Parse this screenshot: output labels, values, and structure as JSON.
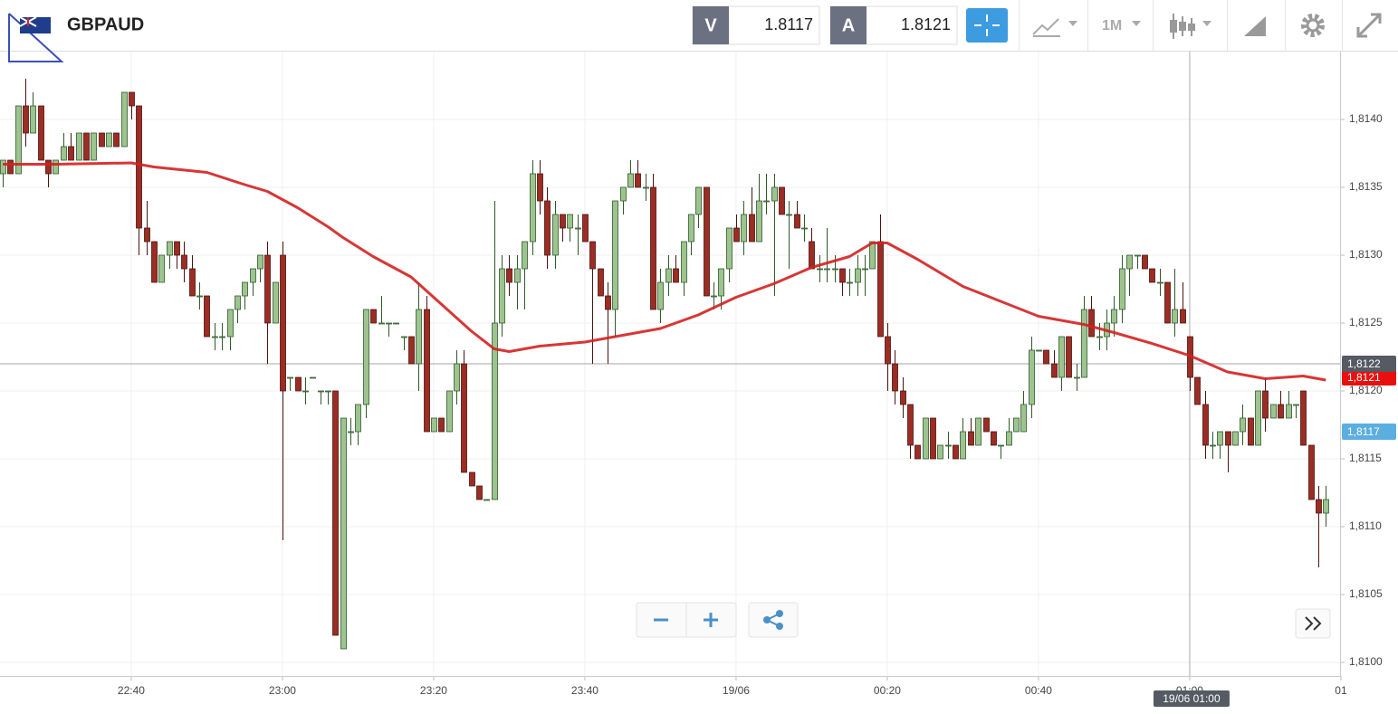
{
  "toolbar": {
    "symbol": "GBPAUD",
    "bid": {
      "label": "V",
      "value": 1.8117
    },
    "ask": {
      "label": "A",
      "value": 1.8121
    },
    "timeframe": "1M"
  },
  "chart_data": {
    "type": "candlestick",
    "x": [
      "22:23",
      "22:24",
      "22:25",
      "22:26",
      "22:27",
      "22:28",
      "22:29",
      "22:30",
      "22:31",
      "22:32",
      "22:33",
      "22:34",
      "22:35",
      "22:36",
      "22:37",
      "22:38",
      "22:39",
      "22:40",
      "22:41",
      "22:42",
      "22:43",
      "22:44",
      "22:45",
      "22:46",
      "22:47",
      "22:48",
      "22:49",
      "22:50",
      "22:51",
      "22:52",
      "22:53",
      "22:54",
      "22:55",
      "22:56",
      "22:57",
      "22:58",
      "22:59",
      "23:00",
      "23:01",
      "23:02",
      "23:03",
      "23:04",
      "23:05",
      "23:06",
      "23:07",
      "23:08",
      "23:09",
      "23:10",
      "23:11",
      "23:12",
      "23:13",
      "23:14",
      "23:15",
      "23:16",
      "23:17",
      "23:18",
      "23:19",
      "23:20",
      "23:21",
      "23:22",
      "23:23",
      "23:24",
      "23:25",
      "23:26",
      "23:27",
      "23:28",
      "23:29",
      "23:30",
      "23:31",
      "23:32",
      "23:33",
      "23:34",
      "23:35",
      "23:36",
      "23:37",
      "23:38",
      "23:39",
      "23:40",
      "23:41",
      "23:42",
      "23:43",
      "23:44",
      "23:45",
      "23:46",
      "23:47",
      "23:48",
      "23:49",
      "23:50",
      "23:51",
      "23:52",
      "23:53",
      "23:54",
      "23:55",
      "23:56",
      "23:57",
      "23:58",
      "23:59",
      "00:00",
      "00:01",
      "00:02",
      "00:03",
      "00:04",
      "00:05",
      "00:06",
      "00:07",
      "00:08",
      "00:09",
      "00:10",
      "00:11",
      "00:12",
      "00:13",
      "00:14",
      "00:15",
      "00:16",
      "00:17",
      "00:18",
      "00:19",
      "00:20",
      "00:21",
      "00:22",
      "00:23",
      "00:24",
      "00:25",
      "00:26",
      "00:27",
      "00:28",
      "00:29",
      "00:30",
      "00:31",
      "00:32",
      "00:33",
      "00:34",
      "00:35",
      "00:36",
      "00:37",
      "00:38",
      "00:39",
      "00:40",
      "00:41",
      "00:42",
      "00:43",
      "00:44",
      "00:45",
      "00:46",
      "00:47",
      "00:48",
      "00:49",
      "00:50",
      "00:51",
      "00:52",
      "00:53",
      "00:54",
      "00:55",
      "00:56",
      "00:57",
      "00:58",
      "00:59",
      "01:00",
      "01:01",
      "01:02",
      "01:03",
      "01:04",
      "01:05",
      "01:06",
      "01:07",
      "01:08",
      "01:09",
      "01:10",
      "01:11",
      "01:12",
      "01:13",
      "01:14",
      "01:15",
      "01:16",
      "01:17",
      "01:18"
    ],
    "ohlc": [
      [
        1.8136,
        1.8137,
        1.8135,
        1.8137
      ],
      [
        1.8137,
        1.8137,
        1.8136,
        1.8136
      ],
      [
        1.8136,
        1.8141,
        1.8136,
        1.8141
      ],
      [
        1.8141,
        1.8143,
        1.8138,
        1.8139
      ],
      [
        1.8139,
        1.8142,
        1.8139,
        1.8141
      ],
      [
        1.8141,
        1.8141,
        1.8137,
        1.8137
      ],
      [
        1.8137,
        1.8137,
        1.8135,
        1.8136
      ],
      [
        1.8136,
        1.8137,
        1.8136,
        1.8137
      ],
      [
        1.8137,
        1.8139,
        1.8137,
        1.8138
      ],
      [
        1.8138,
        1.8139,
        1.8137,
        1.8137
      ],
      [
        1.8137,
        1.8139,
        1.8137,
        1.8139
      ],
      [
        1.8139,
        1.8139,
        1.8137,
        1.8137
      ],
      [
        1.8137,
        1.8139,
        1.8137,
        1.8139
      ],
      [
        1.8139,
        1.8139,
        1.8138,
        1.8138
      ],
      [
        1.8138,
        1.8139,
        1.8138,
        1.8139
      ],
      [
        1.8139,
        1.8139,
        1.8138,
        1.8138
      ],
      [
        1.8138,
        1.8142,
        1.8138,
        1.8142
      ],
      [
        1.8142,
        1.8142,
        1.814,
        1.8141
      ],
      [
        1.8141,
        1.8141,
        1.813,
        1.8132
      ],
      [
        1.8132,
        1.8134,
        1.813,
        1.8131
      ],
      [
        1.8131,
        1.8131,
        1.8128,
        1.8128
      ],
      [
        1.8128,
        1.813,
        1.8128,
        1.813
      ],
      [
        1.813,
        1.8131,
        1.8129,
        1.8131
      ],
      [
        1.8131,
        1.8131,
        1.8129,
        1.813
      ],
      [
        1.813,
        1.8131,
        1.8128,
        1.8129
      ],
      [
        1.8129,
        1.813,
        1.8127,
        1.8127
      ],
      [
        1.8127,
        1.8128,
        1.8126,
        1.8127
      ],
      [
        1.8127,
        1.8127,
        1.8124,
        1.8124
      ],
      [
        1.8124,
        1.8125,
        1.8123,
        1.8124
      ],
      [
        1.8124,
        1.8125,
        1.8123,
        1.8124
      ],
      [
        1.8124,
        1.8126,
        1.8123,
        1.8126
      ],
      [
        1.8126,
        1.8127,
        1.8125,
        1.8127
      ],
      [
        1.8127,
        1.8128,
        1.8126,
        1.8128
      ],
      [
        1.8128,
        1.8129,
        1.8127,
        1.8129
      ],
      [
        1.8129,
        1.813,
        1.8128,
        1.813
      ],
      [
        1.813,
        1.8131,
        1.8122,
        1.8125
      ],
      [
        1.8125,
        1.8128,
        1.8125,
        1.8128
      ],
      [
        1.813,
        1.8131,
        1.8109,
        1.812
      ],
      [
        1.8121,
        1.8121,
        1.812,
        1.8121
      ],
      [
        1.8121,
        1.8121,
        1.812,
        1.812
      ],
      [
        1.812,
        1.8121,
        1.8119,
        1.812
      ],
      [
        1.8121,
        1.8121,
        1.8121,
        1.8121
      ],
      [
        1.812,
        1.812,
        1.8119,
        1.812
      ],
      [
        1.812,
        1.812,
        1.8119,
        1.812
      ],
      [
        1.812,
        1.812,
        1.8102,
        1.8102
      ],
      [
        1.8101,
        1.8118,
        1.8101,
        1.8118
      ],
      [
        1.8117,
        1.8118,
        1.8116,
        1.8117
      ],
      [
        1.8117,
        1.8119,
        1.8116,
        1.8119
      ],
      [
        1.8119,
        1.8126,
        1.8118,
        1.8126
      ],
      [
        1.8126,
        1.8126,
        1.8125,
        1.8125
      ],
      [
        1.8125,
        1.8127,
        1.8125,
        1.8125
      ],
      [
        1.8125,
        1.8125,
        1.8124,
        1.8125
      ],
      [
        1.8125,
        1.8125,
        1.8125,
        1.8125
      ],
      [
        1.8124,
        1.8124,
        1.8123,
        1.8124
      ],
      [
        1.8124,
        1.8124,
        1.8122,
        1.8122
      ],
      [
        1.8122,
        1.8128,
        1.812,
        1.8126
      ],
      [
        1.8126,
        1.8127,
        1.8117,
        1.8117
      ],
      [
        1.8117,
        1.8118,
        1.8117,
        1.8118
      ],
      [
        1.8118,
        1.8118,
        1.8117,
        1.8117
      ],
      [
        1.8117,
        1.812,
        1.8117,
        1.812
      ],
      [
        1.812,
        1.8123,
        1.8119,
        1.8122
      ],
      [
        1.8122,
        1.8123,
        1.8114,
        1.8114
      ],
      [
        1.8114,
        1.8114,
        1.8113,
        1.8113
      ],
      [
        1.8113,
        1.8113,
        1.8112,
        1.8112
      ],
      [
        1.8112,
        1.8112,
        1.8112,
        1.8112
      ],
      [
        1.8112,
        1.8134,
        1.8112,
        1.8125
      ],
      [
        1.8125,
        1.813,
        1.8124,
        1.8129
      ],
      [
        1.8129,
        1.813,
        1.8127,
        1.8128
      ],
      [
        1.8128,
        1.813,
        1.8126,
        1.8129
      ],
      [
        1.8129,
        1.8131,
        1.8126,
        1.8131
      ],
      [
        1.8131,
        1.8137,
        1.813,
        1.8136
      ],
      [
        1.8136,
        1.8137,
        1.8133,
        1.8134
      ],
      [
        1.8134,
        1.8135,
        1.8129,
        1.813
      ],
      [
        1.813,
        1.8134,
        1.8129,
        1.8133
      ],
      [
        1.8133,
        1.8133,
        1.8131,
        1.8132
      ],
      [
        1.8132,
        1.8133,
        1.8131,
        1.8133
      ],
      [
        1.8132,
        1.8133,
        1.813,
        1.8132
      ],
      [
        1.8133,
        1.8133,
        1.8131,
        1.8131
      ],
      [
        1.8131,
        1.8131,
        1.8122,
        1.8129
      ],
      [
        1.8129,
        1.8129,
        1.8127,
        1.8127
      ],
      [
        1.8127,
        1.8128,
        1.8122,
        1.8126
      ],
      [
        1.8126,
        1.8134,
        1.8124,
        1.8134
      ],
      [
        1.8134,
        1.8135,
        1.8133,
        1.8135
      ],
      [
        1.8135,
        1.8137,
        1.8135,
        1.8136
      ],
      [
        1.8136,
        1.8137,
        1.8135,
        1.8135
      ],
      [
        1.8135,
        1.8136,
        1.8134,
        1.8135
      ],
      [
        1.8135,
        1.8136,
        1.8126,
        1.8126
      ],
      [
        1.8126,
        1.8129,
        1.8125,
        1.8128
      ],
      [
        1.8128,
        1.813,
        1.8127,
        1.8129
      ],
      [
        1.8129,
        1.813,
        1.8128,
        1.8128
      ],
      [
        1.8128,
        1.8131,
        1.8127,
        1.8131
      ],
      [
        1.8131,
        1.8133,
        1.813,
        1.8133
      ],
      [
        1.8133,
        1.8135,
        1.8132,
        1.8135
      ],
      [
        1.8135,
        1.8135,
        1.8127,
        1.8127
      ],
      [
        1.8127,
        1.8128,
        1.8126,
        1.8127
      ],
      [
        1.8127,
        1.8129,
        1.8126,
        1.8129
      ],
      [
        1.8129,
        1.8132,
        1.8128,
        1.8132
      ],
      [
        1.8132,
        1.8133,
        1.8131,
        1.8131
      ],
      [
        1.8131,
        1.8134,
        1.813,
        1.8133
      ],
      [
        1.8133,
        1.8135,
        1.8131,
        1.8131
      ],
      [
        1.8131,
        1.8136,
        1.8131,
        1.8134
      ],
      [
        1.8134,
        1.8136,
        1.8133,
        1.8134
      ],
      [
        1.8134,
        1.8136,
        1.8127,
        1.8135
      ],
      [
        1.8135,
        1.8135,
        1.8133,
        1.8133
      ],
      [
        1.8133,
        1.8134,
        1.8129,
        1.8133
      ],
      [
        1.8133,
        1.8134,
        1.8132,
        1.8132
      ],
      [
        1.8132,
        1.8133,
        1.8131,
        1.8132
      ],
      [
        1.8131,
        1.8132,
        1.8129,
        1.8129
      ],
      [
        1.8129,
        1.813,
        1.8128,
        1.8129
      ],
      [
        1.8129,
        1.8132,
        1.8128,
        1.8129
      ],
      [
        1.8129,
        1.813,
        1.8128,
        1.8129
      ],
      [
        1.8129,
        1.8129,
        1.8127,
        1.8128
      ],
      [
        1.8128,
        1.8129,
        1.8127,
        1.8128
      ],
      [
        1.8128,
        1.813,
        1.8127,
        1.8129
      ],
      [
        1.8129,
        1.813,
        1.8127,
        1.8129
      ],
      [
        1.8129,
        1.8131,
        1.8129,
        1.8131
      ],
      [
        1.8131,
        1.8133,
        1.8124,
        1.8124
      ],
      [
        1.8124,
        1.8125,
        1.812,
        1.8122
      ],
      [
        1.8122,
        1.8123,
        1.8119,
        1.812
      ],
      [
        1.812,
        1.8121,
        1.8118,
        1.8119
      ],
      [
        1.8119,
        1.8119,
        1.8115,
        1.8116
      ],
      [
        1.8116,
        1.8116,
        1.8115,
        1.8115
      ],
      [
        1.8115,
        1.8118,
        1.8115,
        1.8118
      ],
      [
        1.8118,
        1.8118,
        1.8115,
        1.8115
      ],
      [
        1.8115,
        1.8116,
        1.8115,
        1.8116
      ],
      [
        1.8116,
        1.8117,
        1.8115,
        1.8116
      ],
      [
        1.8116,
        1.8116,
        1.8115,
        1.8115
      ],
      [
        1.8115,
        1.8118,
        1.8115,
        1.8117
      ],
      [
        1.8117,
        1.8118,
        1.8116,
        1.8116
      ],
      [
        1.8116,
        1.8118,
        1.8116,
        1.8118
      ],
      [
        1.8118,
        1.8118,
        1.8117,
        1.8117
      ],
      [
        1.8117,
        1.8117,
        1.8116,
        1.8116
      ],
      [
        1.8116,
        1.8116,
        1.8115,
        1.8116
      ],
      [
        1.8116,
        1.8118,
        1.8116,
        1.8117
      ],
      [
        1.8117,
        1.8118,
        1.8117,
        1.8118
      ],
      [
        1.8117,
        1.812,
        1.8117,
        1.8119
      ],
      [
        1.8119,
        1.8124,
        1.8118,
        1.8123
      ],
      [
        1.8123,
        1.8123,
        1.8123,
        1.8123
      ],
      [
        1.8123,
        1.8123,
        1.8122,
        1.8122
      ],
      [
        1.8122,
        1.8123,
        1.8121,
        1.8121
      ],
      [
        1.8121,
        1.8124,
        1.812,
        1.8124
      ],
      [
        1.8124,
        1.8124,
        1.8121,
        1.8121
      ],
      [
        1.8121,
        1.8122,
        1.812,
        1.8121
      ],
      [
        1.8121,
        1.8127,
        1.8121,
        1.8126
      ],
      [
        1.8126,
        1.8127,
        1.8124,
        1.8124
      ],
      [
        1.8124,
        1.8125,
        1.8123,
        1.8124
      ],
      [
        1.8124,
        1.8126,
        1.8123,
        1.8125
      ],
      [
        1.8125,
        1.8127,
        1.8124,
        1.8126
      ],
      [
        1.8126,
        1.813,
        1.8125,
        1.8129
      ],
      [
        1.8129,
        1.813,
        1.8127,
        1.813
      ],
      [
        1.813,
        1.813,
        1.8129,
        1.813
      ],
      [
        1.813,
        1.813,
        1.8129,
        1.8129
      ],
      [
        1.8129,
        1.8129,
        1.8128,
        1.8128
      ],
      [
        1.8128,
        1.8129,
        1.8127,
        1.8128
      ],
      [
        1.8128,
        1.8128,
        1.8125,
        1.8125
      ],
      [
        1.8125,
        1.8129,
        1.8124,
        1.8126
      ],
      [
        1.8126,
        1.8128,
        1.8125,
        1.8125
      ],
      [
        1.8124,
        1.8124,
        1.812,
        1.8121
      ],
      [
        1.8121,
        1.8121,
        1.8119,
        1.8119
      ],
      [
        1.8119,
        1.812,
        1.8115,
        1.8116
      ],
      [
        1.8116,
        1.8117,
        1.8115,
        1.8116
      ],
      [
        1.8116,
        1.8117,
        1.8115,
        1.8117
      ],
      [
        1.8117,
        1.8117,
        1.8114,
        1.8116
      ],
      [
        1.8116,
        1.8117,
        1.8116,
        1.8117
      ],
      [
        1.8117,
        1.8119,
        1.8116,
        1.8118
      ],
      [
        1.8118,
        1.8118,
        1.8116,
        1.8116
      ],
      [
        1.8116,
        1.812,
        1.8116,
        1.812
      ],
      [
        1.812,
        1.8121,
        1.8117,
        1.8118
      ],
      [
        1.8118,
        1.8119,
        1.8118,
        1.8119
      ],
      [
        1.8119,
        1.812,
        1.8118,
        1.8118
      ],
      [
        1.8118,
        1.812,
        1.8118,
        1.8119
      ],
      [
        1.8119,
        1.8119,
        1.8118,
        1.8119
      ],
      [
        1.812,
        1.812,
        1.8116,
        1.8116
      ],
      [
        1.8116,
        1.8116,
        1.8112,
        1.8112
      ],
      [
        1.8112,
        1.8113,
        1.8107,
        1.8111
      ],
      [
        1.8111,
        1.8113,
        1.811,
        1.8112
      ]
    ],
    "up_color": "#9dc48f",
    "down_color": "#9b2d24",
    "ma": {
      "color": "#d42020",
      "x": [
        "22:23",
        "22:30",
        "22:40",
        "22:43",
        "22:50",
        "22:55",
        "22:58",
        "23:02",
        "23:06",
        "23:08",
        "23:12",
        "23:17",
        "23:21",
        "23:25",
        "23:28",
        "23:30",
        "23:34",
        "23:40",
        "23:45",
        "23:50",
        "23:55",
        "00:00",
        "00:05",
        "00:10",
        "00:15",
        "00:18",
        "00:20",
        "00:24",
        "00:30",
        "00:40",
        "00:46",
        "00:50",
        "00:55",
        "01:00",
        "01:05",
        "01:10",
        "01:15",
        "01:18"
      ],
      "values": [
        1.81367,
        1.81367,
        1.81368,
        1.81365,
        1.81361,
        1.81352,
        1.81347,
        1.81335,
        1.81321,
        1.81313,
        1.81299,
        1.81284,
        1.81264,
        1.81244,
        1.81231,
        1.81229,
        1.81233,
        1.81236,
        1.81241,
        1.81246,
        1.81256,
        1.81269,
        1.81279,
        1.81291,
        1.81299,
        1.81309,
        1.81309,
        1.81297,
        1.81277,
        1.81255,
        1.81249,
        1.81243,
        1.81235,
        1.81226,
        1.81214,
        1.81209,
        1.81211,
        1.81208
      ]
    },
    "ylim": [
      1.8099,
      1.8145
    ],
    "yticks": [
      {
        "value": 1.81,
        "label": "1,8100"
      },
      {
        "value": 1.8105,
        "label": "1,8105"
      },
      {
        "value": 1.811,
        "label": "1,8110"
      },
      {
        "value": 1.8115,
        "label": "1,8115"
      },
      {
        "value": 1.812,
        "label": "1,8120"
      },
      {
        "value": 1.8125,
        "label": "1,8125"
      },
      {
        "value": 1.813,
        "label": "1,8130"
      },
      {
        "value": 1.8135,
        "label": "1,8135"
      },
      {
        "value": 1.814,
        "label": "1,8140"
      }
    ],
    "xticks": [
      "22:40",
      "23:00",
      "23:20",
      "23:40",
      {
        "value": "00:00",
        "label": "19/06"
      },
      "00:20",
      "00:40",
      "01:00",
      {
        "value": "01:20",
        "label": "01"
      }
    ],
    "grid": true,
    "crosshair": {
      "time": "01:00",
      "time_label": "19/06 01:00",
      "price": 1.8122,
      "price_label": "1,8122"
    },
    "price_markers": [
      {
        "value": 1.8121,
        "label": "1,8121",
        "color": "#e8100f"
      },
      {
        "value": 1.8117,
        "label": "1,8117",
        "color": "#5aaee0"
      }
    ]
  }
}
